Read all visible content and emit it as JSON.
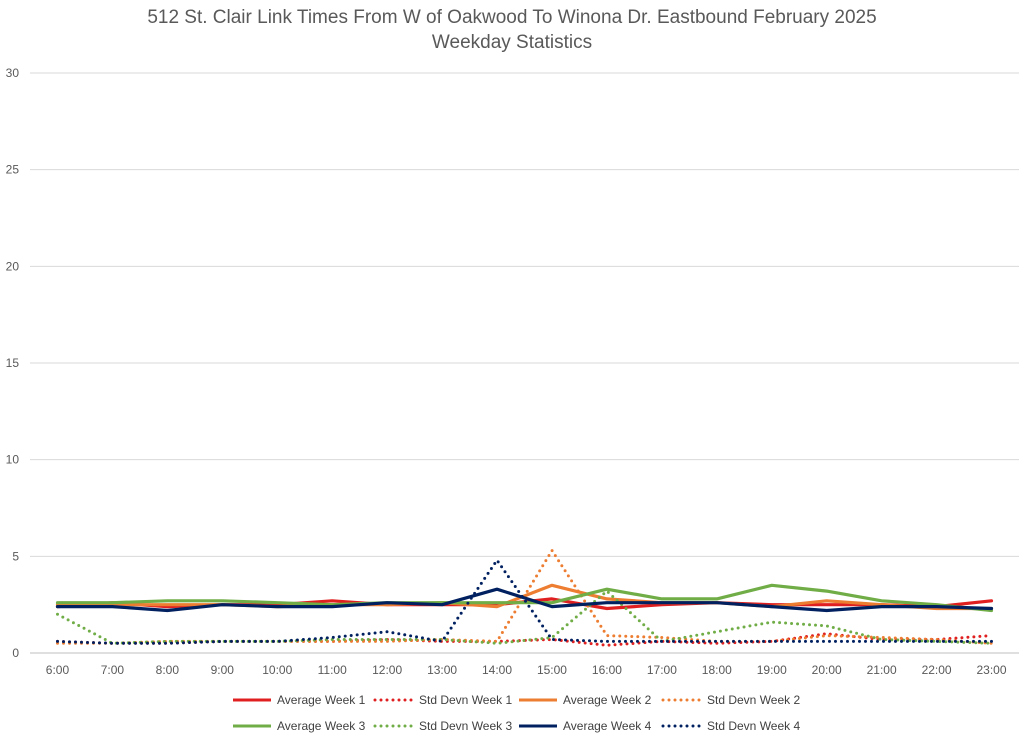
{
  "chart_data": {
    "type": "line",
    "title": "512 St. Clair Link Times From W of Oakwood To Winona Dr. Eastbound February 2025",
    "subtitle": "Weekday Statistics",
    "xlabel": "",
    "ylabel": "",
    "ylim": [
      0,
      30
    ],
    "yticks": [
      0,
      5,
      10,
      15,
      20,
      25,
      30
    ],
    "grid": true,
    "legend_position": "bottom",
    "categories": [
      "6:00",
      "7:00",
      "8:00",
      "9:00",
      "10:00",
      "11:00",
      "12:00",
      "13:00",
      "14:00",
      "15:00",
      "16:00",
      "17:00",
      "18:00",
      "19:00",
      "20:00",
      "21:00",
      "22:00",
      "23:00"
    ],
    "series": [
      {
        "name": "Average Week 1",
        "color": "#e02020",
        "style": "solid",
        "values": [
          2.4,
          2.6,
          2.4,
          2.5,
          2.5,
          2.7,
          2.5,
          2.5,
          2.5,
          2.8,
          2.3,
          2.5,
          2.6,
          2.5,
          2.5,
          2.5,
          2.4,
          2.7
        ]
      },
      {
        "name": "Std Devn Week 1",
        "color": "#e02020",
        "style": "dotted",
        "values": [
          0.6,
          0.5,
          0.5,
          0.6,
          0.6,
          0.6,
          0.7,
          0.6,
          0.6,
          0.7,
          0.4,
          0.6,
          0.5,
          0.6,
          1.0,
          0.7,
          0.7,
          0.9
        ]
      },
      {
        "name": "Average Week 2",
        "color": "#ed7d31",
        "style": "solid",
        "values": [
          2.5,
          2.5,
          2.5,
          2.5,
          2.4,
          2.5,
          2.5,
          2.6,
          2.4,
          3.5,
          2.8,
          2.6,
          2.6,
          2.4,
          2.7,
          2.5,
          2.3,
          2.3
        ]
      },
      {
        "name": "Std Devn Week 2",
        "color": "#ed7d31",
        "style": "dotted",
        "values": [
          0.5,
          0.5,
          0.6,
          0.6,
          0.6,
          0.6,
          0.6,
          0.7,
          0.6,
          5.3,
          0.9,
          0.8,
          0.6,
          0.6,
          0.9,
          0.8,
          0.7,
          0.5
        ]
      },
      {
        "name": "Average Week 3",
        "color": "#70ad47",
        "style": "solid",
        "values": [
          2.6,
          2.6,
          2.7,
          2.7,
          2.6,
          2.5,
          2.6,
          2.6,
          2.6,
          2.6,
          3.3,
          2.8,
          2.8,
          3.5,
          3.2,
          2.7,
          2.5,
          2.2
        ]
      },
      {
        "name": "Std Devn Week 3",
        "color": "#70ad47",
        "style": "dotted",
        "values": [
          2.0,
          0.5,
          0.6,
          0.6,
          0.6,
          0.7,
          0.7,
          0.7,
          0.5,
          0.8,
          3.2,
          0.6,
          1.1,
          1.6,
          1.4,
          0.7,
          0.6,
          0.5
        ]
      },
      {
        "name": "Average Week 4",
        "color": "#002060",
        "style": "solid",
        "values": [
          2.4,
          2.4,
          2.2,
          2.5,
          2.4,
          2.4,
          2.6,
          2.5,
          3.3,
          2.4,
          2.6,
          2.6,
          2.6,
          2.4,
          2.2,
          2.4,
          2.4,
          2.3
        ]
      },
      {
        "name": "Std Devn Week 4",
        "color": "#002060",
        "style": "dotted",
        "values": [
          0.6,
          0.5,
          0.5,
          0.6,
          0.6,
          0.8,
          1.1,
          0.6,
          4.8,
          0.7,
          0.6,
          0.6,
          0.6,
          0.6,
          0.6,
          0.6,
          0.6,
          0.6
        ]
      }
    ]
  }
}
